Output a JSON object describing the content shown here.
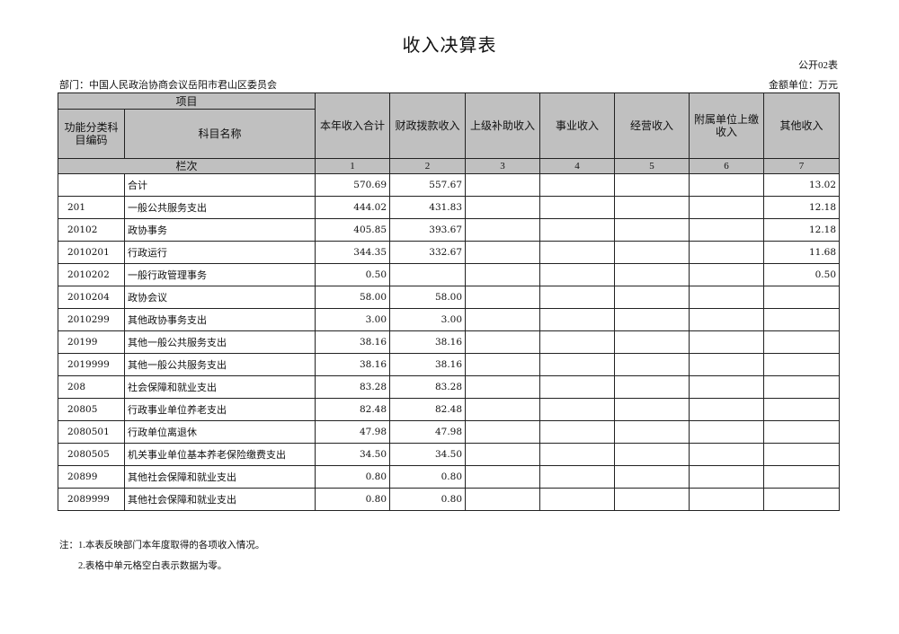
{
  "title": "收入决算表",
  "form_no": "公开02表",
  "department": "部门：中国人民政治协商会议岳阳市君山区委员会",
  "unit": "金额单位：万元",
  "header": {
    "item": "项目",
    "code": "功能分类科目编码",
    "name": "科目名称",
    "columns": [
      "本年收入合计",
      "财政拨款收入",
      "上级补助收入",
      "事业收入",
      "经营收入",
      "附属单位上缴收入",
      "其他收入"
    ],
    "row_index_label": "栏次",
    "column_numbers": [
      "1",
      "2",
      "3",
      "4",
      "5",
      "6",
      "7"
    ]
  },
  "rows": [
    {
      "code": "",
      "name": "合计",
      "values": [
        "570.69",
        "557.67",
        "",
        "",
        "",
        "",
        "13.02"
      ]
    },
    {
      "code": "201",
      "name": "一般公共服务支出",
      "values": [
        "444.02",
        "431.83",
        "",
        "",
        "",
        "",
        "12.18"
      ]
    },
    {
      "code": "20102",
      "name": "政协事务",
      "values": [
        "405.85",
        "393.67",
        "",
        "",
        "",
        "",
        "12.18"
      ]
    },
    {
      "code": "2010201",
      "name": "行政运行",
      "values": [
        "344.35",
        "332.67",
        "",
        "",
        "",
        "",
        "11.68"
      ]
    },
    {
      "code": "2010202",
      "name": "一般行政管理事务",
      "values": [
        "0.50",
        "",
        "",
        "",
        "",
        "",
        "0.50"
      ]
    },
    {
      "code": "2010204",
      "name": "政协会议",
      "values": [
        "58.00",
        "58.00",
        "",
        "",
        "",
        "",
        ""
      ]
    },
    {
      "code": "2010299",
      "name": "其他政协事务支出",
      "values": [
        "3.00",
        "3.00",
        "",
        "",
        "",
        "",
        ""
      ]
    },
    {
      "code": "20199",
      "name": "其他一般公共服务支出",
      "values": [
        "38.16",
        "38.16",
        "",
        "",
        "",
        "",
        ""
      ]
    },
    {
      "code": "2019999",
      "name": "其他一般公共服务支出",
      "values": [
        "38.16",
        "38.16",
        "",
        "",
        "",
        "",
        ""
      ]
    },
    {
      "code": "208",
      "name": "社会保障和就业支出",
      "values": [
        "83.28",
        "83.28",
        "",
        "",
        "",
        "",
        ""
      ]
    },
    {
      "code": "20805",
      "name": "行政事业单位养老支出",
      "values": [
        "82.48",
        "82.48",
        "",
        "",
        "",
        "",
        ""
      ]
    },
    {
      "code": "2080501",
      "name": "行政单位离退休",
      "values": [
        "47.98",
        "47.98",
        "",
        "",
        "",
        "",
        ""
      ]
    },
    {
      "code": "2080505",
      "name": "机关事业单位基本养老保险缴费支出",
      "values": [
        "34.50",
        "34.50",
        "",
        "",
        "",
        "",
        ""
      ]
    },
    {
      "code": "20899",
      "name": "其他社会保障和就业支出",
      "values": [
        "0.80",
        "0.80",
        "",
        "",
        "",
        "",
        ""
      ]
    },
    {
      "code": "2089999",
      "name": "其他社会保障和就业支出",
      "values": [
        "0.80",
        "0.80",
        "",
        "",
        "",
        "",
        ""
      ]
    }
  ],
  "notes": [
    "注：1.本表反映部门本年度取得的各项收入情况。",
    "2.表格中单元格空白表示数据为零。"
  ],
  "colors": {
    "header_bg": "#c0c0c0",
    "border": "#222222"
  }
}
